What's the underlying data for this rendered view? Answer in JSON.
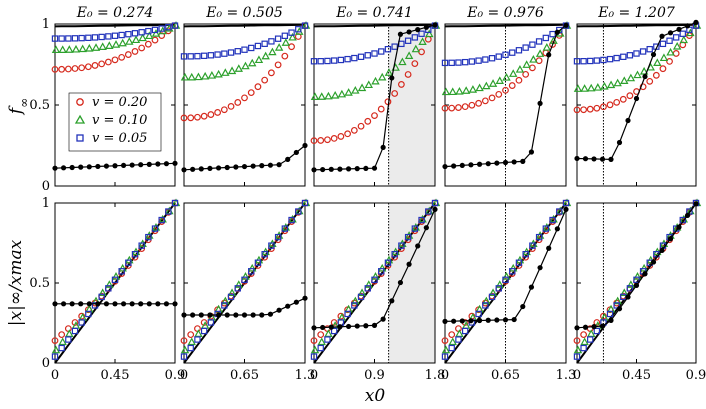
{
  "chart_data": {
    "type": "scatter",
    "grid": false,
    "row_ylabels": [
      "f∞",
      "|x|∞/xmax"
    ],
    "xlabel": "x0",
    "ylim": [
      0,
      1
    ],
    "yticks": [
      "0",
      "0.5",
      "1"
    ],
    "legend": {
      "placement": "left, first panel",
      "entries": [
        {
          "name": "v = 0.20",
          "marker": "circle",
          "color": "#d62a1e"
        },
        {
          "name": "v = 0.10",
          "marker": "triangle",
          "color": "#2ca02c"
        },
        {
          "name": "v = 0.05",
          "marker": "square",
          "color": "#2233bb"
        }
      ]
    },
    "panels": [
      {
        "title": "E0 = 0.274",
        "xlim": [
          0,
          0.9
        ],
        "xticks": [
          0,
          0.45,
          0.9
        ],
        "xtick_labels": [
          "0",
          "0.45",
          "0.9"
        ],
        "vline": null,
        "shade": null
      },
      {
        "title": "E0 = 0.505",
        "xlim": [
          0,
          1.3
        ],
        "xticks": [
          0,
          0.65,
          1.3
        ],
        "xtick_labels": [
          "0",
          "0.65",
          "1.3"
        ],
        "vline": null,
        "shade": null
      },
      {
        "title": "E0 = 0.741",
        "xlim": [
          0,
          1.8
        ],
        "xticks": [
          0,
          0.9,
          1.8
        ],
        "xtick_labels": [
          "0",
          "0.9",
          "1.8"
        ],
        "vline": 1.11,
        "shade": [
          1.11,
          1.8
        ]
      },
      {
        "title": "E0 = 0.976",
        "xlim": [
          0,
          1.3
        ],
        "xticks": [
          0,
          0.65,
          1.3
        ],
        "xtick_labels": [
          "0",
          "0.65",
          "1.3"
        ],
        "vline": 0.65,
        "shade": null
      },
      {
        "title": "E0 = 1.207",
        "xlim": [
          0,
          0.9
        ],
        "xticks": [
          0,
          0.45,
          0.9
        ],
        "xtick_labels": [
          "0",
          "0.45",
          "0.9"
        ],
        "vline": 0.2,
        "shade": null
      }
    ]
  }
}
